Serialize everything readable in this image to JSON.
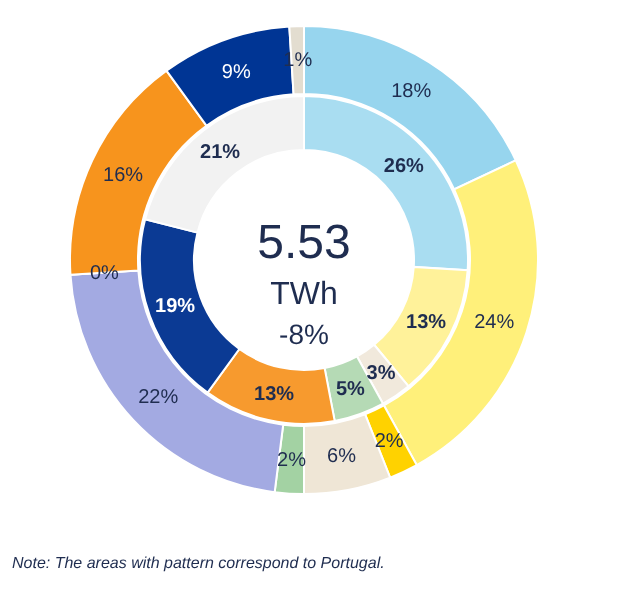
{
  "chart_data": {
    "type": "donut",
    "series": [
      {
        "values": [
          18,
          24,
          2,
          6,
          2,
          22,
          0,
          16,
          9,
          1
        ],
        "colors": [
          "#97d5ee",
          "#fff07a",
          "#ffd200",
          "#efe6d6",
          "#a3d2a3",
          "#a3aae2",
          "#f7941d",
          "#f7941d",
          "#003594",
          "#e3ddd0"
        ],
        "value_labels": [
          "18%",
          "24%",
          "2%",
          "6%",
          "2%",
          "22%",
          "0%",
          "16%",
          "9%",
          "1%"
        ]
      },
      {
        "values": [
          26,
          13,
          3,
          5,
          13,
          19,
          21
        ],
        "colors": [
          "#a9ddf1",
          "#fff29a",
          "#f1e9dc",
          "#b5dab5",
          "#f79a2e",
          "#0b3a94",
          "#f2f2f2"
        ],
        "value_labels": [
          "26%",
          "13%",
          "3%",
          "5%",
          "13%",
          "19%",
          "21%"
        ]
      }
    ],
    "annotations": [
      "5.53",
      "TWh",
      "-8%",
      "Note: The  areas with pattern correspond to Portugal."
    ]
  }
}
